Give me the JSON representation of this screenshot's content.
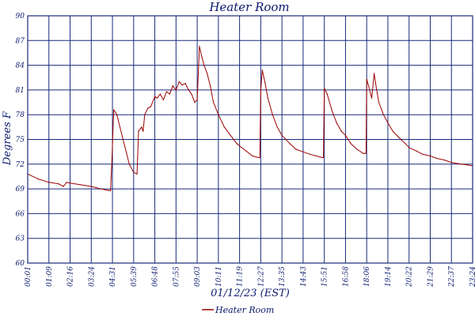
{
  "chart_data": {
    "type": "line",
    "title": "Heater Room",
    "xlabel": "01/12/23 (EST)",
    "ylabel": "Degrees F",
    "x_ticks": [
      "00:01",
      "01:09",
      "02:16",
      "03:24",
      "04:31",
      "05:39",
      "06:48",
      "07:55",
      "09:03",
      "10:11",
      "11:19",
      "12:27",
      "13:35",
      "14:43",
      "15:51",
      "16:58",
      "18:06",
      "19:14",
      "20:22",
      "21:29",
      "22:37",
      "23:24"
    ],
    "y_ticks": [
      "90",
      "87",
      "84",
      "81",
      "78",
      "75",
      "72",
      "69",
      "66",
      "63",
      "60"
    ],
    "y_tick_values": [
      90,
      87,
      84,
      81,
      78,
      75,
      72,
      69,
      66,
      63,
      60
    ],
    "ylim": [
      60,
      90
    ],
    "grid": true,
    "legend_position": "bottom-center",
    "colors": {
      "series": "#9b0000",
      "grid": "#1a2a7a",
      "text": "#0a1a6e"
    },
    "series": [
      {
        "name": "Heater Room",
        "x": [
          "00:01",
          "00:35",
          "01:09",
          "01:40",
          "01:55",
          "02:05",
          "02:16",
          "02:50",
          "03:24",
          "03:55",
          "04:20",
          "04:25",
          "04:27",
          "04:29",
          "04:35",
          "04:45",
          "04:55",
          "05:05",
          "05:15",
          "05:25",
          "05:39",
          "05:50",
          "05:55",
          "06:05",
          "06:10",
          "06:15",
          "06:25",
          "06:35",
          "06:48",
          "06:55",
          "07:05",
          "07:15",
          "07:25",
          "07:35",
          "07:45",
          "07:55",
          "08:05",
          "08:15",
          "08:25",
          "08:35",
          "08:45",
          "08:55",
          "09:03",
          "09:10",
          "09:18",
          "09:25",
          "09:35",
          "09:45",
          "09:55",
          "10:11",
          "10:30",
          "10:50",
          "11:10",
          "11:19",
          "11:40",
          "12:00",
          "12:20",
          "12:24",
          "12:27",
          "12:32",
          "12:40",
          "12:50",
          "13:05",
          "13:20",
          "13:35",
          "14:00",
          "14:20",
          "14:43",
          "15:05",
          "15:25",
          "15:45",
          "15:48",
          "15:51",
          "16:00",
          "16:15",
          "16:30",
          "16:45",
          "16:58",
          "17:15",
          "17:35",
          "17:55",
          "18:00",
          "18:04",
          "18:06",
          "18:12",
          "18:22",
          "18:30",
          "18:38",
          "18:45",
          "19:00",
          "19:14",
          "19:30",
          "19:50",
          "20:10",
          "20:22",
          "20:45",
          "21:05",
          "21:29",
          "21:50",
          "22:15",
          "22:37",
          "23:00",
          "23:24"
        ],
        "values": [
          70.8,
          70.2,
          69.8,
          69.6,
          69.3,
          69.8,
          69.7,
          69.5,
          69.3,
          69.0,
          68.8,
          68.8,
          70.5,
          72.0,
          78.6,
          78.0,
          76.5,
          75.0,
          73.5,
          72.0,
          71.0,
          70.8,
          76.0,
          76.5,
          76.0,
          78.0,
          78.8,
          79.0,
          80.2,
          80.0,
          80.5,
          79.8,
          80.8,
          80.5,
          81.5,
          81.0,
          82.0,
          81.6,
          81.8,
          81.0,
          80.5,
          79.5,
          79.8,
          86.3,
          85.0,
          84.0,
          83.0,
          81.5,
          79.5,
          78.0,
          76.5,
          75.5,
          74.5,
          74.2,
          73.6,
          73.0,
          72.8,
          72.8,
          81.0,
          83.4,
          82.0,
          80.0,
          78.0,
          76.5,
          75.5,
          74.5,
          73.8,
          73.5,
          73.2,
          73.0,
          72.8,
          72.8,
          81.2,
          80.5,
          78.5,
          77.0,
          76.0,
          75.5,
          74.5,
          73.8,
          73.3,
          73.3,
          73.3,
          82.3,
          81.5,
          80.0,
          83.0,
          81.0,
          79.5,
          78.0,
          77.0,
          76.0,
          75.2,
          74.5,
          74.0,
          73.6,
          73.2,
          73.0,
          72.7,
          72.5,
          72.2,
          72.0,
          71.8
        ]
      }
    ]
  }
}
